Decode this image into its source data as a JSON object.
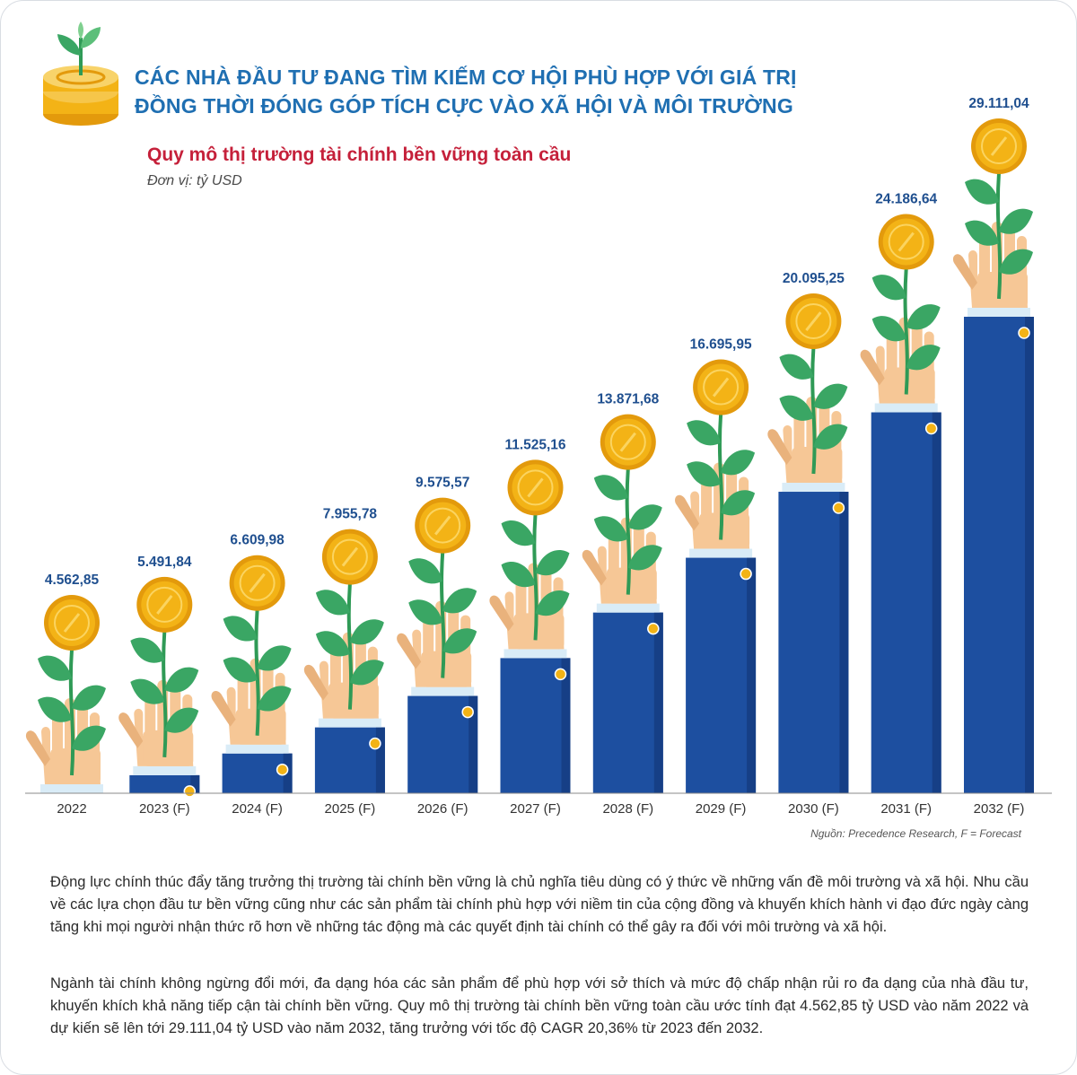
{
  "headline": {
    "line1": "CÁC NHÀ ĐẦU TƯ ĐANG TÌM KIẾM CƠ HỘI PHÙ HỢP VỚI GIÁ TRỊ",
    "line2": "ĐỒNG THỜI ĐÓNG GÓP TÍCH CỰC VÀO XÃ HỘI VÀ MÔI TRƯỜNG"
  },
  "colors": {
    "headline": "#1f6fb2",
    "subtitle": "#c5203a",
    "bar": "#1d4fa0",
    "bar_dark": "#163f86",
    "cuff": "#d9ecf7",
    "hand": "#f6c796",
    "hand_shadow": "#e9b27c",
    "coin": "#f3b316",
    "coin_rim": "#e39a0c",
    "leaf": "#3aa664",
    "stem": "#2f9a56",
    "value_label": "#1f4f8f"
  },
  "chart_data": {
    "type": "bar",
    "title": "Quy mô thị trường tài chính bền vững toàn cầu",
    "unit": "Đơn vị: tỷ USD",
    "categories": [
      "2022",
      "2023 (F)",
      "2024 (F)",
      "2025 (F)",
      "2026 (F)",
      "2027 (F)",
      "2028 (F)",
      "2029 (F)",
      "2030 (F)",
      "2031 (F)",
      "2032 (F)"
    ],
    "values": [
      4562.85,
      5491.84,
      6609.98,
      7955.78,
      9575.57,
      11525.16,
      13871.68,
      16695.95,
      20095.25,
      24186.64,
      29111.04
    ],
    "value_labels": [
      "4.562,85",
      "5.491,84",
      "6.609,98",
      "7.955,78",
      "9.575,57",
      "11.525,16",
      "13.871,68",
      "16.695,95",
      "20.095,25",
      "24.186,64",
      "29.111,04"
    ],
    "source": "Nguồn: Precedence Research, F = Forecast"
  },
  "paragraphs": [
    "Động lực chính thúc đẩy tăng trưởng thị trường tài chính bền vững là chủ nghĩa tiêu dùng có ý thức về những vấn đề môi trường và xã hội. Nhu cầu về các lựa chọn đầu tư bền vững cũng như các sản phẩm tài chính phù hợp với niềm tin của cộng đồng và khuyến khích hành vi đạo đức ngày càng tăng khi mọi người nhận thức rõ hơn về những tác động mà các quyết định tài chính có thể gây ra đối với môi trường và xã hội.",
    "Ngành tài chính không ngừng đổi mới, đa dạng hóa các sản phẩm để phù hợp với sở thích và mức độ chấp nhận rủi ro đa dạng của nhà đầu tư, khuyến khích khả năng tiếp cận tài chính bền vững. Quy mô thị trường tài chính bền vững toàn cầu ước tính đạt 4.562,85 tỷ USD vào năm 2022 và dự kiến sẽ lên tới 29.111,04 tỷ USD vào năm 2032, tăng trưởng với tốc độ CAGR 20,36% từ 2023 đến 2032."
  ]
}
